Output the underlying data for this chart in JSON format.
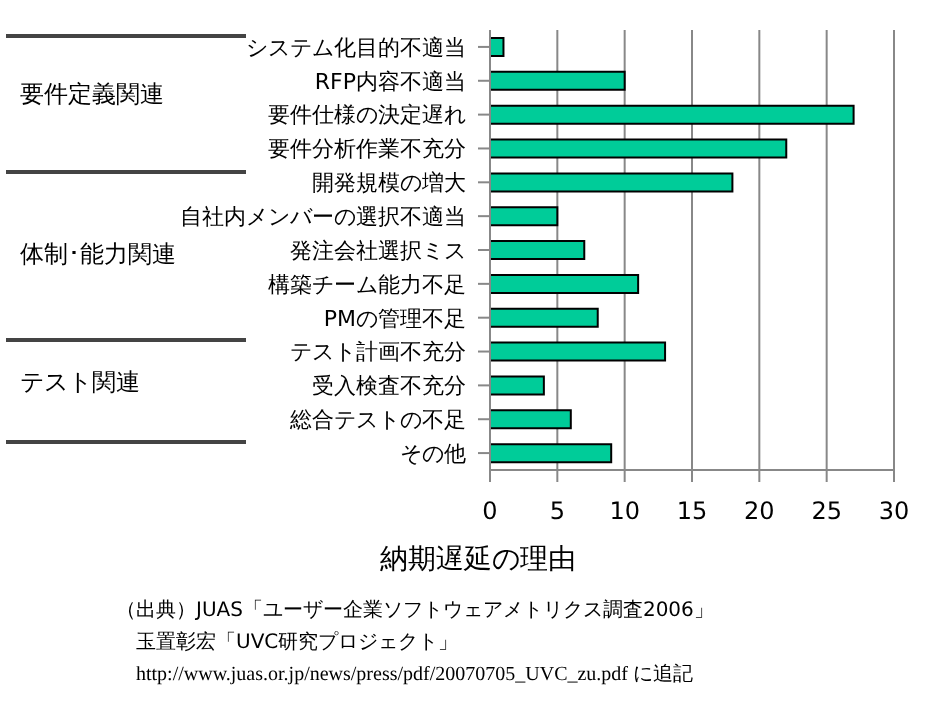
{
  "chart_data": {
    "type": "bar",
    "orientation": "horizontal",
    "xlabel": "納期遅延の理由",
    "categories": [
      "システム化目的不適当",
      "RFP内容不適当",
      "要件仕様の決定遅れ",
      "要件分析作業不充分",
      "開発規模の増大",
      "自社内メンバーの選択不適当",
      "発注会社選択ミス",
      "構築チーム能力不足",
      "PMの管理不足",
      "テスト計画不充分",
      "受入検査不充分",
      "総合テストの不足",
      "その他"
    ],
    "values": [
      1,
      10,
      27,
      22,
      18,
      5,
      7,
      11,
      8,
      13,
      4,
      6,
      9
    ],
    "color": "#00cc99",
    "xlim": [
      0,
      30
    ],
    "xticks": [
      0,
      5,
      10,
      15,
      20,
      25,
      30
    ],
    "grid": "x",
    "legend": false,
    "annotations": [
      "要件定義関連",
      "体制･能力関連",
      "テスト関連",
      "（出典）JUAS「ユーザー企業ソフトウェアメトリクス調査2006」",
      "玉置彰宏「UVC研究プロジェクト」",
      "http://www.juas.or.jp/news/press/pdf/20070705_UVC_zu.pdf に追記"
    ]
  }
}
